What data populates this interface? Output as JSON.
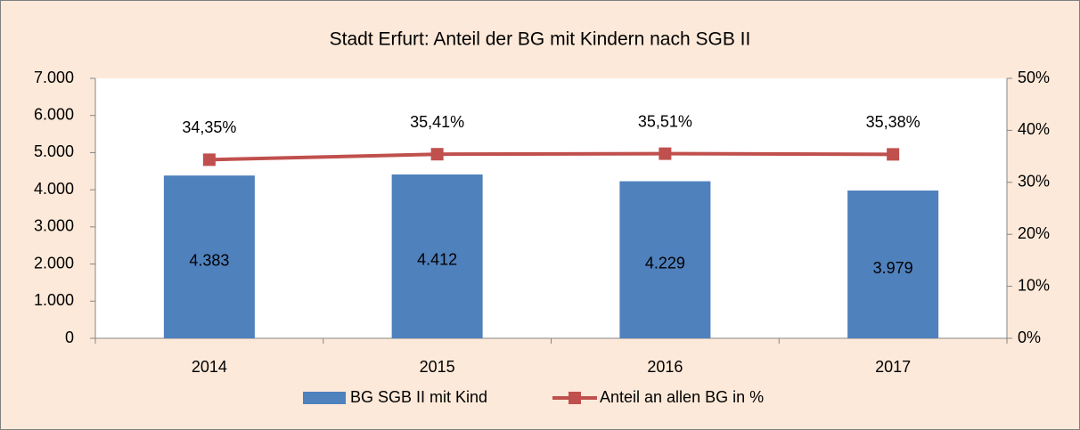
{
  "chart_data": {
    "type": "bar",
    "title": "Stadt Erfurt: Anteil der BG mit Kindern nach SGB II",
    "categories": [
      "2014",
      "2015",
      "2016",
      "2017"
    ],
    "series": [
      {
        "name": "BG SGB II mit Kind",
        "type": "bar",
        "color": "#4f81bd",
        "values": [
          4383,
          4412,
          4229,
          3979
        ],
        "value_labels": [
          "4.383",
          "4.412",
          "4.229",
          "3.979"
        ]
      },
      {
        "name": "Anteil an allen BG in %",
        "type": "line",
        "axis": "y2",
        "color": "#c0504d",
        "values": [
          34.35,
          35.41,
          35.51,
          35.38
        ],
        "value_labels": [
          "34,35%",
          "35,41%",
          "35,51%",
          "35,38%"
        ]
      }
    ],
    "ylim": [
      0,
      7000
    ],
    "yticks": [
      0,
      {
        "value": 1000,
        "label": "1.000"
      },
      {
        "value": 2000,
        "label": "2.000"
      },
      {
        "value": 3000,
        "label": "3.000"
      },
      {
        "value": 4000,
        "label": "4.000"
      },
      {
        "value": 5000,
        "label": "5.000"
      },
      {
        "value": 6000,
        "label": "6.000"
      },
      {
        "value": 7000,
        "label": "7.000"
      }
    ],
    "y2lim": [
      0,
      50
    ],
    "y2ticks": [
      {
        "value": 0,
        "label": "0%"
      },
      {
        "value": 10,
        "label": "10%"
      },
      {
        "value": 20,
        "label": "20%"
      },
      {
        "value": 30,
        "label": "30%"
      },
      {
        "value": 40,
        "label": "40%"
      },
      {
        "value": 50,
        "label": "50%"
      }
    ],
    "grid": false,
    "legend": "bottom"
  }
}
